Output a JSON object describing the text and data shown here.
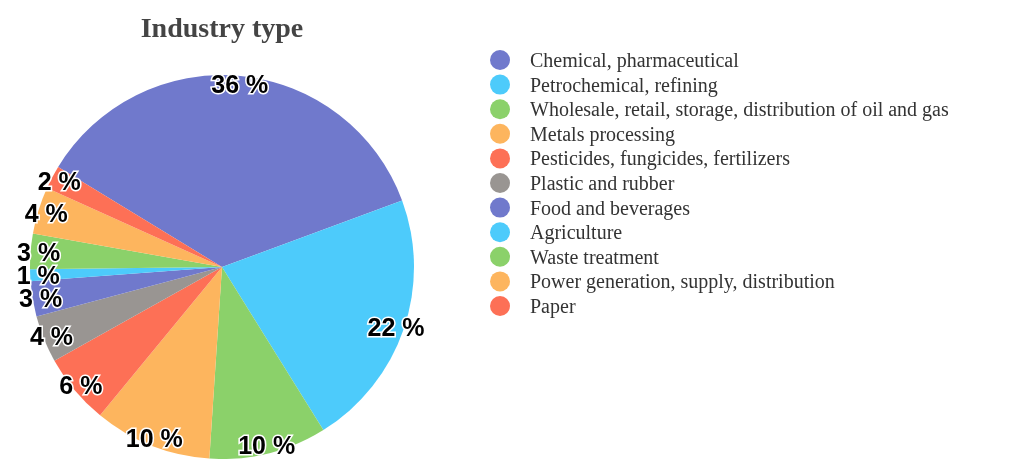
{
  "chart_data": {
    "type": "pie",
    "title": "Industry type",
    "categories": [
      "Chemical, pharmaceutical",
      "Petrochemical, refining",
      "Wholesale, retail, storage, distribution of oil and gas",
      "Metals processing",
      "Pesticides, fungicides, fertilizers",
      "Plastic and rubber",
      "Food and beverages",
      "Agriculture",
      "Waste treatment",
      "Power generation, supply, distribution",
      "Paper"
    ],
    "values": [
      36,
      22,
      10,
      10,
      6,
      4,
      3,
      1,
      3,
      4,
      2
    ],
    "value_labels": [
      "36 %",
      "22 %",
      "10 %",
      "10 %",
      "6 %",
      "4 %",
      "3 %",
      "1 %",
      "3 %",
      "4 %",
      "2 %"
    ],
    "colors": [
      "#7079cc",
      "#4dcbfb",
      "#8bd16a",
      "#fdb55e",
      "#fd7056",
      "#999592",
      "#7079cc",
      "#4dcbfb",
      "#8bd16a",
      "#fdb55e",
      "#fd7056"
    ],
    "legend": "right"
  }
}
